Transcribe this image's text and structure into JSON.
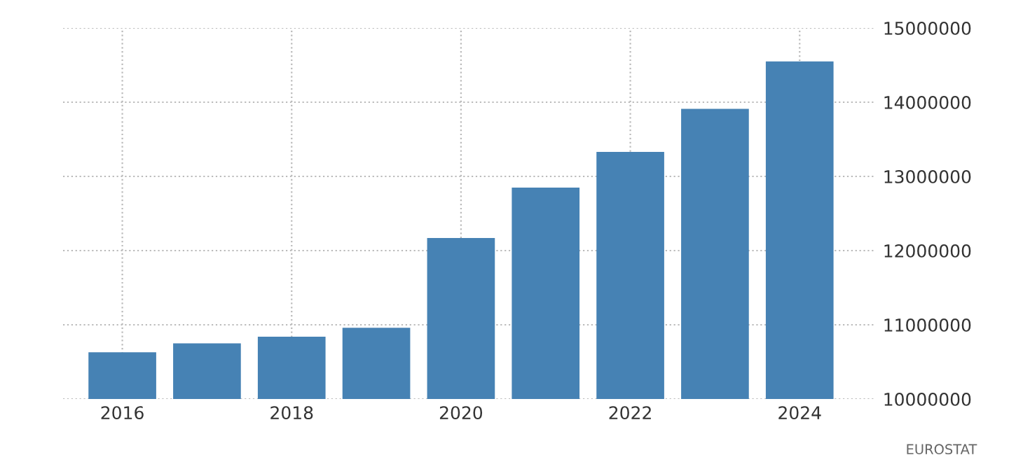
{
  "chart_data": {
    "type": "bar",
    "x": [
      2016,
      2017,
      2018,
      2019,
      2020,
      2021,
      2022,
      2023,
      2024
    ],
    "values": [
      10630000,
      10750000,
      10840000,
      10960000,
      12170000,
      12850000,
      13330000,
      13910000,
      14550000
    ],
    "color": "#4682b4",
    "xlim": [
      2015.3,
      2024.9
    ],
    "xticks": [
      2016,
      2018,
      2020,
      2022,
      2024
    ],
    "ylim": [
      10000000,
      15000000
    ],
    "yticks": [
      10000000,
      11000000,
      12000000,
      13000000,
      14000000,
      15000000
    ],
    "grid": true,
    "annotations": [
      "EUROSTAT"
    ]
  }
}
